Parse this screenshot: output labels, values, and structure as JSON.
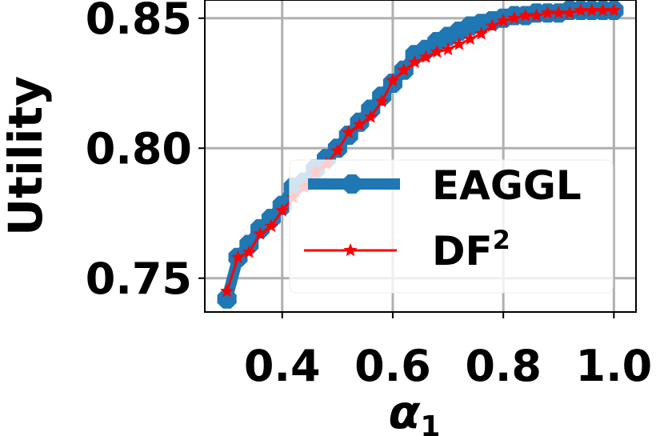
{
  "chart_data": {
    "type": "line",
    "xlabel": "α",
    "xlabel_subscript": "1",
    "ylabel": "Utility",
    "xlim": [
      0.26,
      1.04
    ],
    "ylim": [
      0.737,
      0.857
    ],
    "xticks": [
      0.4,
      0.6,
      0.8,
      1.0
    ],
    "xtick_labels": [
      "0.4",
      "0.6",
      "0.8",
      "1.0"
    ],
    "yticks": [
      0.75,
      0.8,
      0.85
    ],
    "ytick_labels": [
      "0.75",
      "0.80",
      "0.85"
    ],
    "grid": true,
    "legend_position": "center-right",
    "series": [
      {
        "name": "EAGGL",
        "color": "#1f77b4",
        "marker": "octagon",
        "x": [
          0.3,
          0.32,
          0.34,
          0.36,
          0.38,
          0.4,
          0.42,
          0.44,
          0.46,
          0.48,
          0.5,
          0.52,
          0.54,
          0.56,
          0.58,
          0.6,
          0.62,
          0.64,
          0.66,
          0.68,
          0.7,
          0.72,
          0.74,
          0.76,
          0.78,
          0.8,
          0.82,
          0.84,
          0.86,
          0.88,
          0.9,
          0.92,
          0.94,
          0.96,
          0.98,
          1.0
        ],
        "values": [
          0.742,
          0.758,
          0.763,
          0.769,
          0.773,
          0.778,
          0.785,
          0.787,
          0.792,
          0.796,
          0.8,
          0.805,
          0.81,
          0.815,
          0.82,
          0.825,
          0.83,
          0.836,
          0.838,
          0.841,
          0.843,
          0.845,
          0.847,
          0.848,
          0.849,
          0.85,
          0.851,
          0.851,
          0.852,
          0.852,
          0.852,
          0.853,
          0.853,
          0.853,
          0.853,
          0.853
        ]
      },
      {
        "name": "DF",
        "name_superscript": "2",
        "color": "#ff0000",
        "marker": "star",
        "x": [
          0.3,
          0.32,
          0.34,
          0.36,
          0.38,
          0.4,
          0.42,
          0.44,
          0.46,
          0.48,
          0.5,
          0.52,
          0.54,
          0.56,
          0.58,
          0.6,
          0.62,
          0.64,
          0.66,
          0.68,
          0.7,
          0.72,
          0.74,
          0.76,
          0.78,
          0.8,
          0.82,
          0.84,
          0.86,
          0.88,
          0.9,
          0.92,
          0.94,
          0.96,
          0.98,
          1.0
        ],
        "values": [
          0.745,
          0.758,
          0.76,
          0.767,
          0.77,
          0.776,
          0.781,
          0.785,
          0.791,
          0.794,
          0.799,
          0.806,
          0.809,
          0.812,
          0.818,
          0.826,
          0.83,
          0.833,
          0.835,
          0.837,
          0.838,
          0.84,
          0.842,
          0.844,
          0.847,
          0.849,
          0.85,
          0.851,
          0.851,
          0.852,
          0.852,
          0.852,
          0.853,
          0.853,
          0.853,
          0.853
        ]
      }
    ]
  }
}
